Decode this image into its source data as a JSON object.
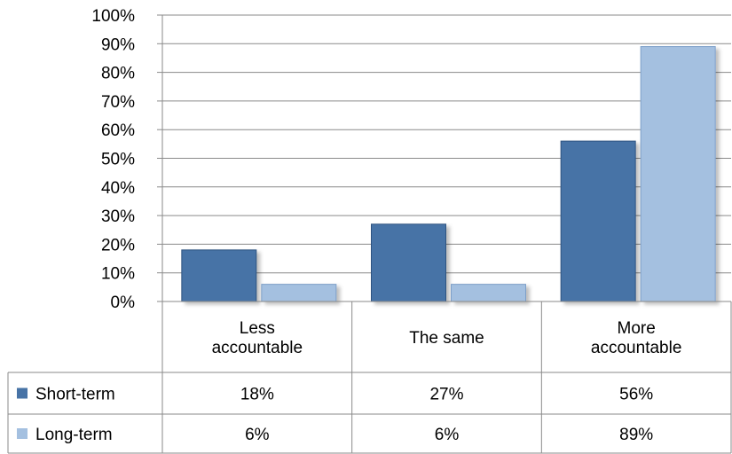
{
  "chart_data": {
    "type": "bar",
    "categories": [
      [
        "Less",
        "accountable"
      ],
      [
        "The same"
      ],
      [
        "More",
        "accountable"
      ]
    ],
    "series": [
      {
        "name": "Short-term",
        "values": [
          0.18,
          0.27,
          0.56
        ],
        "labels": [
          "18%",
          "27%",
          "56%"
        ],
        "color": "#4773a6",
        "edge": "#2f5380"
      },
      {
        "name": "Long-term",
        "values": [
          0.06,
          0.06,
          0.89
        ],
        "labels": [
          "6%",
          "6%",
          "89%"
        ],
        "color": "#a4c0e0",
        "edge": "#7d9fc8"
      }
    ],
    "ylim": [
      0,
      1
    ],
    "yticks": [
      {
        "value": 0,
        "label": "0%"
      },
      {
        "value": 0.1,
        "label": "10%"
      },
      {
        "value": 0.2,
        "label": "20%"
      },
      {
        "value": 0.3,
        "label": "30%"
      },
      {
        "value": 0.4,
        "label": "40%"
      },
      {
        "value": 0.5,
        "label": "50%"
      },
      {
        "value": 0.6,
        "label": "60%"
      },
      {
        "value": 0.7,
        "label": "70%"
      },
      {
        "value": 0.8,
        "label": "80%"
      },
      {
        "value": 0.9,
        "label": "90%"
      },
      {
        "value": 1,
        "label": "100%"
      }
    ],
    "grid": true,
    "legend": "data-table"
  }
}
